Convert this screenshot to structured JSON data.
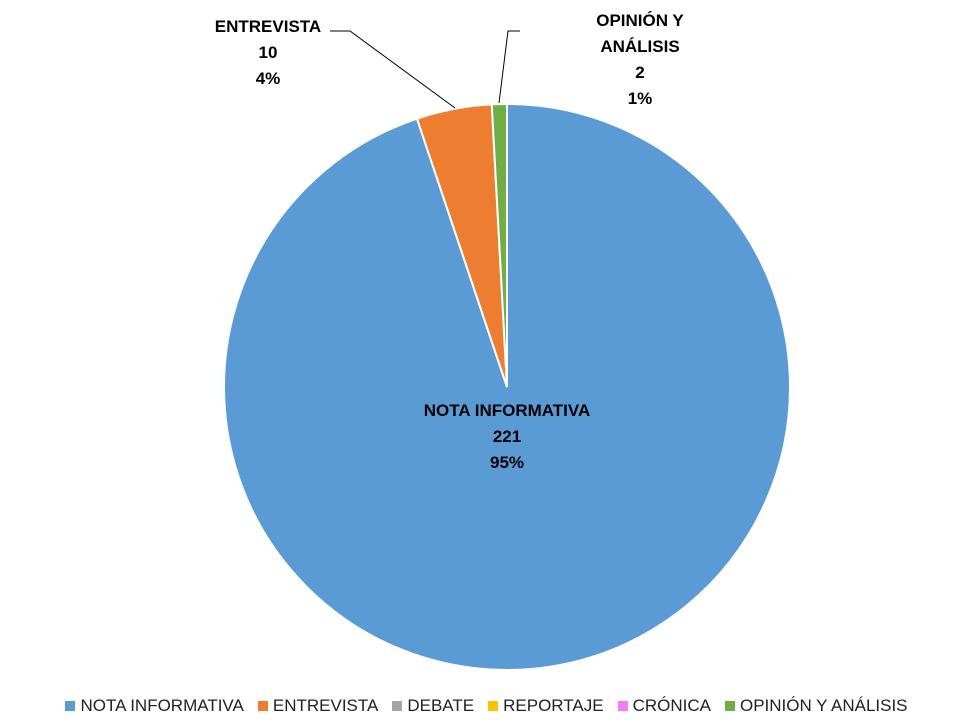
{
  "chart_data": {
    "type": "pie",
    "categories": [
      "NOTA INFORMATIVA",
      "ENTREVISTA",
      "DEBATE",
      "REPORTAJE",
      "CRÓNICA",
      "OPINIÓN Y ANÁLISIS"
    ],
    "values": [
      221,
      10,
      0,
      0,
      0,
      2
    ],
    "percent_labels": [
      "95%",
      "4%",
      null,
      null,
      null,
      "1%"
    ],
    "colors": [
      "#5b9bd5",
      "#ed7d31",
      "#a5a5a5",
      "#ffc000",
      "#f47cf4",
      "#70ad47"
    ],
    "legend": "bottom"
  }
}
